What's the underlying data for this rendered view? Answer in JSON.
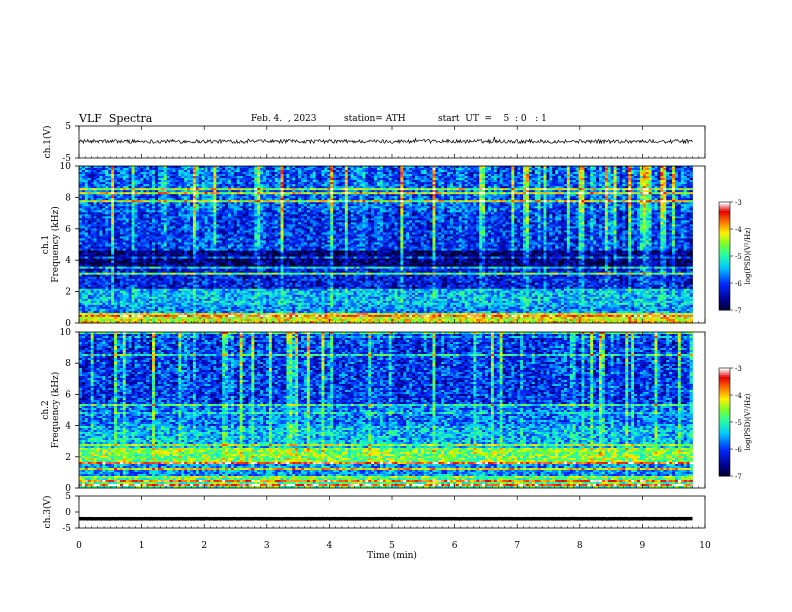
{
  "header": {
    "title": "VLF  Spectra",
    "date": "Feb. 4.  , 2023",
    "station": "station= ATH",
    "start": "start  UT  =    5  : 0   : 1"
  },
  "chart_data": [
    {
      "type": "line",
      "ylabel": "ch.1(V)",
      "yticks": [
        "5",
        "-5"
      ],
      "ylim": [
        -5,
        5
      ],
      "xlim": [
        0,
        10
      ],
      "data_end_min": 9.8,
      "trace": {
        "baseline": 0.2,
        "noise_amplitude": 0.6,
        "color": "#000000"
      }
    },
    {
      "type": "heatmap",
      "ylabel": "ch.1\nFrequency  (kHz)",
      "yticks": [
        "0",
        "2",
        "4",
        "6",
        "8",
        "10"
      ],
      "ylim": [
        0,
        10
      ],
      "xlim": [
        0,
        10
      ],
      "data_end_min": 9.8,
      "colorbar": {
        "label": "log(PSD)(V²/Hz)",
        "ticks": [
          "-3",
          "-4",
          "-5",
          "-6",
          "-7"
        ],
        "range": [
          -7,
          -3
        ]
      },
      "frequency_profile_kHz": [
        {
          "f": [
            0,
            0.6
          ],
          "level": -4.2
        },
        {
          "f": [
            0.6,
            1.2
          ],
          "level": -5.6
        },
        {
          "f": [
            1.2,
            2.2
          ],
          "level": -5.4
        },
        {
          "f": [
            2.2,
            3.4
          ],
          "level": -6.2
        },
        {
          "f": [
            3.4,
            4.6
          ],
          "level": -6.7
        },
        {
          "f": [
            4.6,
            7.0
          ],
          "level": -6.0
        },
        {
          "f": [
            7.0,
            10.0
          ],
          "level": -5.8
        }
      ]
    },
    {
      "type": "heatmap",
      "ylabel": "ch.2\nFrequency  (kHz)",
      "yticks": [
        "0",
        "2",
        "4",
        "6",
        "8",
        "10"
      ],
      "ylim": [
        0,
        10
      ],
      "xlim": [
        0,
        10
      ],
      "data_end_min": 9.8,
      "colorbar": {
        "label": "log(PSD)(V²/Hz)",
        "ticks": [
          "-3",
          "-4",
          "-5",
          "-6",
          "-7"
        ],
        "range": [
          -7,
          -3
        ]
      },
      "frequency_profile_kHz": [
        {
          "f": [
            0,
            0.6
          ],
          "level": -4.8
        },
        {
          "f": [
            0.6,
            1.6
          ],
          "level": -5.6
        },
        {
          "f": [
            1.6,
            2.4
          ],
          "level": -4.6
        },
        {
          "f": [
            2.4,
            4.0
          ],
          "level": -5.4
        },
        {
          "f": [
            4.0,
            5.2
          ],
          "level": -5.7
        },
        {
          "f": [
            5.2,
            10.0
          ],
          "level": -6.0
        }
      ]
    },
    {
      "type": "line",
      "ylabel": "ch.3(V)",
      "yticks": [
        "5",
        "0",
        "-5"
      ],
      "ylim": [
        -5,
        5
      ],
      "xlim": [
        0,
        10
      ],
      "data_end_min": 9.8,
      "trace": {
        "baseline": -2.1,
        "noise_amplitude": 0.05,
        "color": "#000000"
      },
      "xlabel": "Time  (min)",
      "xticks": [
        "0",
        "1",
        "2",
        "3",
        "4",
        "5",
        "6",
        "7",
        "8",
        "9",
        "10"
      ]
    }
  ]
}
